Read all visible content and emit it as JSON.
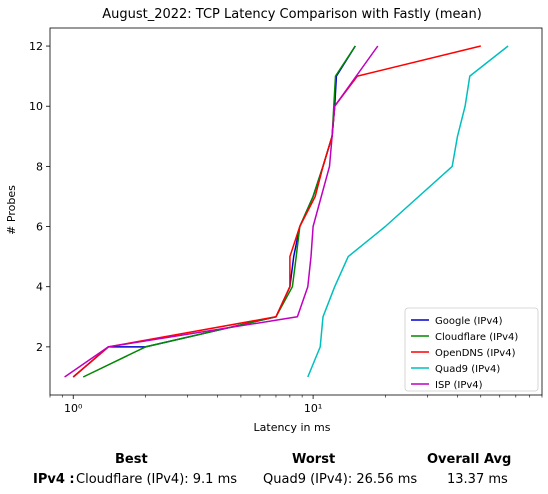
{
  "chart_data": {
    "type": "line",
    "title": "August_2022: TCP Latency Comparison with Fastly (mean)",
    "xlabel": "Latency in ms",
    "ylabel": "# Probes",
    "x_scale": "log",
    "xlim": [
      0.8,
      90
    ],
    "ylim": [
      0.4,
      12.6
    ],
    "x_ticks": [
      {
        "value": 1,
        "label": "10⁰"
      },
      {
        "value": 10,
        "label": "10¹"
      }
    ],
    "y_ticks": [
      2,
      4,
      6,
      8,
      10,
      12
    ],
    "grid": false,
    "legend_position": "lower-right",
    "series": [
      {
        "name": "Google (IPv4)",
        "color": "#0000cc",
        "x": [
          1.0,
          1.4,
          2.0,
          7.0,
          8.0,
          8.3,
          8.8,
          10.0,
          11.0,
          12.0,
          12.3,
          12.5,
          15.0
        ],
        "y": [
          1,
          2,
          2,
          3,
          4,
          5,
          6,
          7,
          8,
          9,
          10,
          11,
          12
        ]
      },
      {
        "name": "Cloudflare (IPv4)",
        "color": "#008800",
        "x": [
          1.1,
          2.0,
          7.0,
          8.2,
          8.5,
          8.8,
          10.0,
          11.0,
          12.0,
          12.2,
          12.4,
          15.0
        ],
        "y": [
          1,
          2,
          3,
          4,
          5,
          6,
          7,
          8,
          9,
          10,
          11,
          12
        ]
      },
      {
        "name": "OpenDNS (IPv4)",
        "color": "#ff0000",
        "x": [
          1.0,
          1.4,
          7.0,
          8.0,
          8.0,
          8.8,
          10.2,
          11.0,
          12.0,
          12.3,
          15.3,
          50.0
        ],
        "y": [
          1,
          2,
          3,
          4,
          5,
          6,
          7,
          8,
          9,
          10,
          11,
          12
        ]
      },
      {
        "name": "Quad9 (IPv4)",
        "color": "#00bfbf",
        "x": [
          9.5,
          10.7,
          11.0,
          12.3,
          14.0,
          20.0,
          38.0,
          40.0,
          43.0,
          45.0,
          65.0
        ],
        "y": [
          1,
          2,
          3,
          4,
          5,
          6,
          8,
          9,
          10,
          11,
          12
        ]
      },
      {
        "name": "ISP (IPv4)",
        "color": "#bf00bf",
        "x": [
          0.92,
          1.4,
          8.6,
          9.5,
          9.8,
          10.0,
          11.7,
          12.3,
          18.6
        ],
        "y": [
          1,
          2,
          3,
          4,
          5,
          6,
          8,
          10,
          12
        ]
      }
    ]
  },
  "summary": {
    "best_header": "Best",
    "worst_header": "Worst",
    "avg_header": "Overall Avg",
    "row_label": "IPv4 :",
    "best_value": "Cloudflare (IPv4): 9.1 ms",
    "worst_value": "Quad9 (IPv4): 26.56 ms",
    "avg_value": "13.37 ms"
  }
}
